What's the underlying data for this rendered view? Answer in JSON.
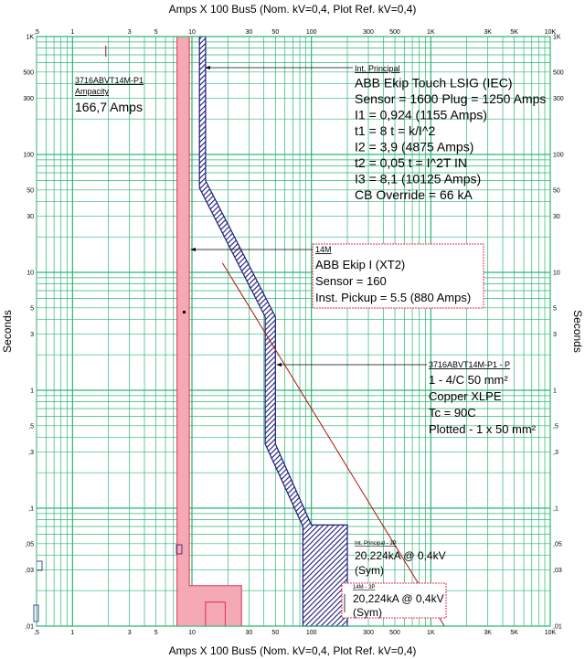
{
  "chart_data": {
    "type": "line",
    "title_top": "Amps  X  100   Bus5 (Nom. kV=0,4, Plot Ref. kV=0,4)",
    "title_bottom": "Amps  X  100   Bus5 (Nom. kV=0,4, Plot Ref. kV=0,4)",
    "ylabel": "Seconds",
    "x_scale": "log",
    "y_scale": "log",
    "xlim": [
      0.5,
      10000
    ],
    "ylim": [
      0.01,
      1000
    ],
    "x_ticks": [
      {
        "v": 0.5,
        "label": ",5"
      },
      {
        "v": 1,
        "label": "1"
      },
      {
        "v": 3,
        "label": "3"
      },
      {
        "v": 5,
        "label": "5"
      },
      {
        "v": 10,
        "label": "10"
      },
      {
        "v": 30,
        "label": "30"
      },
      {
        "v": 50,
        "label": "50"
      },
      {
        "v": 100,
        "label": "100"
      },
      {
        "v": 300,
        "label": "300"
      },
      {
        "v": 500,
        "label": "500"
      },
      {
        "v": 1000,
        "label": "1K"
      },
      {
        "v": 3000,
        "label": "3K"
      },
      {
        "v": 5000,
        "label": "5K"
      },
      {
        "v": 10000,
        "label": "10K"
      }
    ],
    "y_ticks": [
      {
        "v": 1000,
        "label": "1K"
      },
      {
        "v": 500,
        "label": "500"
      },
      {
        "v": 300,
        "label": "300"
      },
      {
        "v": 100,
        "label": "100"
      },
      {
        "v": 50,
        "label": "50"
      },
      {
        "v": 30,
        "label": "30"
      },
      {
        "v": 10,
        "label": "10"
      },
      {
        "v": 5,
        "label": "5"
      },
      {
        "v": 3,
        "label": "3"
      },
      {
        "v": 1,
        "label": "1"
      },
      {
        "v": 0.5,
        "label": ",5"
      },
      {
        "v": 0.3,
        "label": ",3"
      },
      {
        "v": 0.1,
        "label": ",1"
      },
      {
        "v": 0.05,
        "label": ",05"
      },
      {
        "v": 0.03,
        "label": ",03"
      },
      {
        "v": 0.01,
        "label": ",01"
      }
    ],
    "series": [
      {
        "name": "Int. Principal",
        "color": "#1a1a7a",
        "band_left": [
          [
            11.55,
            1000
          ],
          [
            11.55,
            52
          ],
          [
            41,
            4.2
          ],
          [
            41,
            0.35
          ],
          [
            85,
            0.07
          ],
          [
            85,
            0.01
          ]
        ],
        "band_right": [
          [
            13,
            1000
          ],
          [
            13,
            60
          ],
          [
            50,
            4.2
          ],
          [
            50,
            0.35
          ],
          [
            100,
            0.072
          ],
          [
            200,
            0.072
          ],
          [
            200,
            0.01
          ]
        ]
      },
      {
        "name": "14M",
        "color": "#f4a9b5",
        "edge_color": "#e03050",
        "band_left": [
          [
            7.5,
            1000
          ],
          [
            7.5,
            0.01
          ]
        ],
        "band_right": [
          [
            9.5,
            1000
          ],
          [
            9.5,
            0.022
          ],
          [
            26,
            0.022
          ],
          [
            26,
            0.01
          ]
        ],
        "notch": [
          [
            13,
            0.016
          ],
          [
            19,
            0.016
          ],
          [
            19,
            0.01
          ],
          [
            13,
            0.01
          ]
        ]
      },
      {
        "name": "3716ABVT14M-P1 - P",
        "color": "#b01010",
        "points": [
          [
            18,
            12
          ],
          [
            1300,
            0.01
          ]
        ]
      }
    ],
    "annotations": [
      {
        "title": "3716ABVT14M-P1",
        "lines": [
          "Ampacity",
          "166,7 Amps"
        ]
      },
      {
        "title": "Int. Principal",
        "lines": [
          "ABB  Ekip Touch LSIG (IEC)",
          "Sensor = 1600 Plug = 1250 Amps",
          "I1 = 0,924 (1155 Amps)",
          "t1 = 8  t = k/I^2",
          "I2 = 3,9 (4875 Amps)",
          "t2 = 0,05  t = I^2T IN",
          "I3 = 8,1 (10125 Amps)",
          "CB Override = 66 kA"
        ]
      },
      {
        "title": "14M",
        "lines": [
          "ABB  Ekip I (XT2)",
          "Sensor = 160",
          "Inst. Pickup = 5.5 (880 Amps)"
        ]
      },
      {
        "title": "3716ABVT14M-P1 - P",
        "lines": [
          "1 - 4/C 50 mm²",
          "Copper  XLPE",
          "Tc = 90C",
          "Plotted - 1 x 50 mm²"
        ]
      },
      {
        "title": "Int. Principal - 3P",
        "lines": [
          "20,224kA @ 0,4kV",
          "(Sym)"
        ]
      },
      {
        "title": "14M - 3P",
        "lines": [
          "20,224kA @ 0,4kV",
          "(Sym)"
        ]
      }
    ],
    "colors": {
      "grid": "#2bb673",
      "cb_main": "#1a1a7a",
      "cb_14m_fill": "#f4a9b5",
      "cb_14m_edge": "#e03050",
      "cable": "#b01010",
      "box_border": "#e03050"
    }
  }
}
